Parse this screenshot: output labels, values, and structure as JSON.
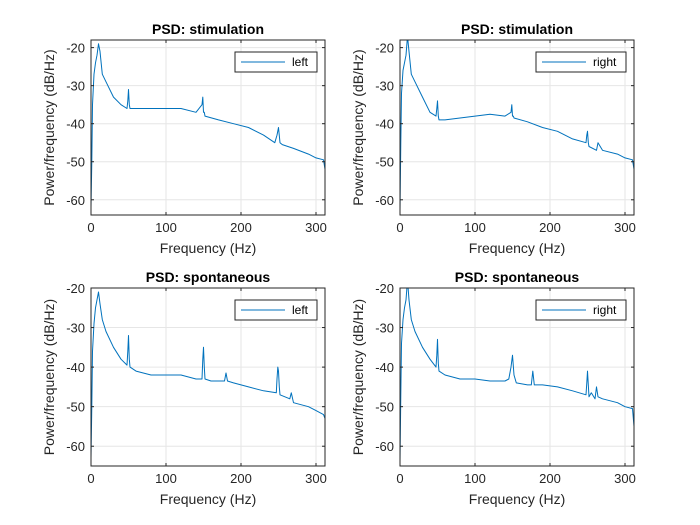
{
  "chart_data": [
    {
      "type": "line",
      "title": "PSD: stimulation",
      "xlabel": "Frequency (Hz)",
      "ylabel": "Power/frequency (dB/Hz)",
      "xlim": [
        0,
        312
      ],
      "ylim": [
        -64,
        -18
      ],
      "xticks": [
        0,
        100,
        200,
        300
      ],
      "yticks": [
        -60,
        -50,
        -40,
        -30,
        -20
      ],
      "grid": true,
      "legend_position": "top-right",
      "color": "#0072BD",
      "series": [
        {
          "name": "left",
          "x": [
            0,
            1,
            2,
            4,
            6,
            8,
            10,
            12,
            15,
            20,
            30,
            40,
            48,
            49,
            50,
            51,
            52,
            60,
            80,
            100,
            120,
            140,
            148,
            149,
            150,
            151,
            152,
            170,
            190,
            210,
            230,
            245,
            248,
            250,
            252,
            255,
            270,
            290,
            300,
            310,
            312
          ],
          "y": [
            -62,
            -50,
            -35,
            -27,
            -24,
            -22,
            -19,
            -21,
            -27,
            -29,
            -33,
            -35,
            -36,
            -34,
            -31,
            -35,
            -36,
            -36,
            -36,
            -36,
            -36,
            -37,
            -35,
            -33,
            -37,
            -37,
            -38,
            -39,
            -40,
            -41,
            -43,
            -45,
            -43,
            -41,
            -45,
            -45.5,
            -46.5,
            -48,
            -49,
            -49.5,
            -52
          ]
        },
        {
          "name": "right",
          "x": [
            0,
            1,
            2,
            4,
            6,
            8,
            10,
            12,
            15,
            20,
            30,
            40,
            48,
            49,
            50,
            51,
            52,
            60,
            80,
            100,
            120,
            140,
            148,
            149,
            150,
            151,
            152,
            170,
            190,
            210,
            230,
            248,
            249,
            250,
            251,
            252,
            262,
            264,
            270,
            290,
            300,
            310,
            312
          ],
          "y": [
            -63,
            -45,
            -32,
            -26,
            -24,
            -22,
            -17,
            -21,
            -27,
            -29,
            -33,
            -37,
            -38,
            -36,
            -34,
            -38,
            -39,
            -39,
            -38.5,
            -38,
            -37.5,
            -38,
            -37,
            -35,
            -38,
            -38,
            -38.5,
            -39.5,
            -41,
            -42,
            -44,
            -45,
            -43,
            -42,
            -45,
            -46,
            -47,
            -45,
            -47,
            -48,
            -49,
            -49.5,
            -52
          ]
        }
      ]
    },
    {
      "type": "line",
      "title": "PSD: spontaneous",
      "xlabel": "Frequency (Hz)",
      "ylabel": "Power/frequency (dB/Hz)",
      "xlim": [
        0,
        312
      ],
      "ylim": [
        -65,
        -20
      ],
      "xticks": [
        0,
        100,
        200,
        300
      ],
      "yticks": [
        -60,
        -50,
        -40,
        -30,
        -20
      ],
      "grid": true,
      "legend_position": "top-right",
      "color": "#0072BD",
      "series": [
        {
          "name": "left",
          "x": [
            0,
            1,
            2,
            4,
            6,
            8,
            10,
            12,
            15,
            20,
            30,
            40,
            48,
            49,
            50,
            51,
            52,
            60,
            80,
            100,
            120,
            140,
            148,
            149,
            150,
            151,
            152,
            160,
            178,
            180,
            182,
            190,
            210,
            230,
            247,
            248,
            249,
            250,
            251,
            252,
            265,
            267,
            270,
            290,
            300,
            310,
            312
          ],
          "y": [
            -63,
            -50,
            -36,
            -29,
            -25,
            -23,
            -21,
            -24,
            -28,
            -31,
            -35,
            -38,
            -39.5,
            -36,
            -32,
            -38,
            -40,
            -41,
            -42,
            -42,
            -42,
            -43,
            -43,
            -38,
            -35,
            -40,
            -43,
            -43.5,
            -43.5,
            -41.5,
            -43.5,
            -44,
            -45,
            -46,
            -46.5,
            -43,
            -40,
            -41,
            -45,
            -47,
            -48,
            -46.5,
            -49,
            -50,
            -51,
            -52,
            -53
          ]
        },
        {
          "name": "right",
          "x": [
            0,
            1,
            2,
            4,
            6,
            8,
            10,
            12,
            15,
            20,
            30,
            40,
            48,
            49,
            50,
            51,
            52,
            60,
            80,
            100,
            120,
            140,
            145,
            148,
            150,
            152,
            155,
            170,
            175,
            177,
            179,
            190,
            210,
            230,
            248,
            249,
            250,
            251,
            252,
            255,
            260,
            262,
            264,
            270,
            290,
            300,
            310,
            312
          ],
          "y": [
            -64,
            -47,
            -34,
            -28,
            -25,
            -23,
            -18,
            -23,
            -28,
            -31,
            -35,
            -38,
            -40,
            -37,
            -33,
            -39,
            -41,
            -42,
            -43,
            -43,
            -43.5,
            -43.5,
            -43,
            -40,
            -37,
            -42,
            -44,
            -44.5,
            -44.5,
            -41,
            -44.5,
            -44.5,
            -45,
            -46,
            -47,
            -44,
            -41,
            -44.5,
            -47.5,
            -46.5,
            -48,
            -45,
            -47.5,
            -48,
            -49,
            -50,
            -50.5,
            -55
          ]
        }
      ]
    },
    {
      "type": "line",
      "title": "PSD: spontaneous",
      "xlabel": "Frequency (Hz)",
      "ylabel": "Power/frequency (dB/Hz)",
      "xlim": [
        0,
        312
      ],
      "ylim": [
        -65,
        -20
      ],
      "xticks": [
        0,
        100,
        200,
        300
      ],
      "yticks": [
        -60,
        -50,
        -40,
        -30,
        -20
      ],
      "grid": true,
      "legend_position": "top-right",
      "color": "#0072BD",
      "series": []
    }
  ]
}
